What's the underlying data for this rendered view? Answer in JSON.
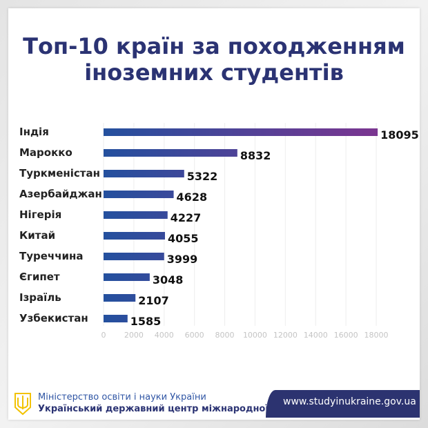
{
  "chart_data": {
    "type": "bar",
    "orientation": "horizontal",
    "title": "Топ-10 країн за походженням іноземних студентів",
    "title_lines": [
      "Топ-10 країн за походженням",
      "іноземних студентів"
    ],
    "categories": [
      "Індія",
      "Марокко",
      "Туркменістан",
      "Азербайджан",
      "Нігерія",
      "Китай",
      "Туреччина",
      "Єгипет",
      "Ізраїль",
      "Узбекистан"
    ],
    "values": [
      18095,
      8832,
      5322,
      4628,
      4227,
      4055,
      3999,
      3048,
      2107,
      1585
    ],
    "xlim": [
      0,
      18000
    ],
    "xticks": [
      "0",
      "2000",
      "4000",
      "6000",
      "8000",
      "10000",
      "12000",
      "14000",
      "16000",
      "18000"
    ],
    "grid": true,
    "colors": {
      "start": "#24509e",
      "end": "#7b3590"
    }
  },
  "footer": {
    "ministry": "Міністерство освіти і науки України",
    "center": "Український державний центр міжнародної освіти",
    "url": "www.studyinukraine.gov.ua"
  }
}
